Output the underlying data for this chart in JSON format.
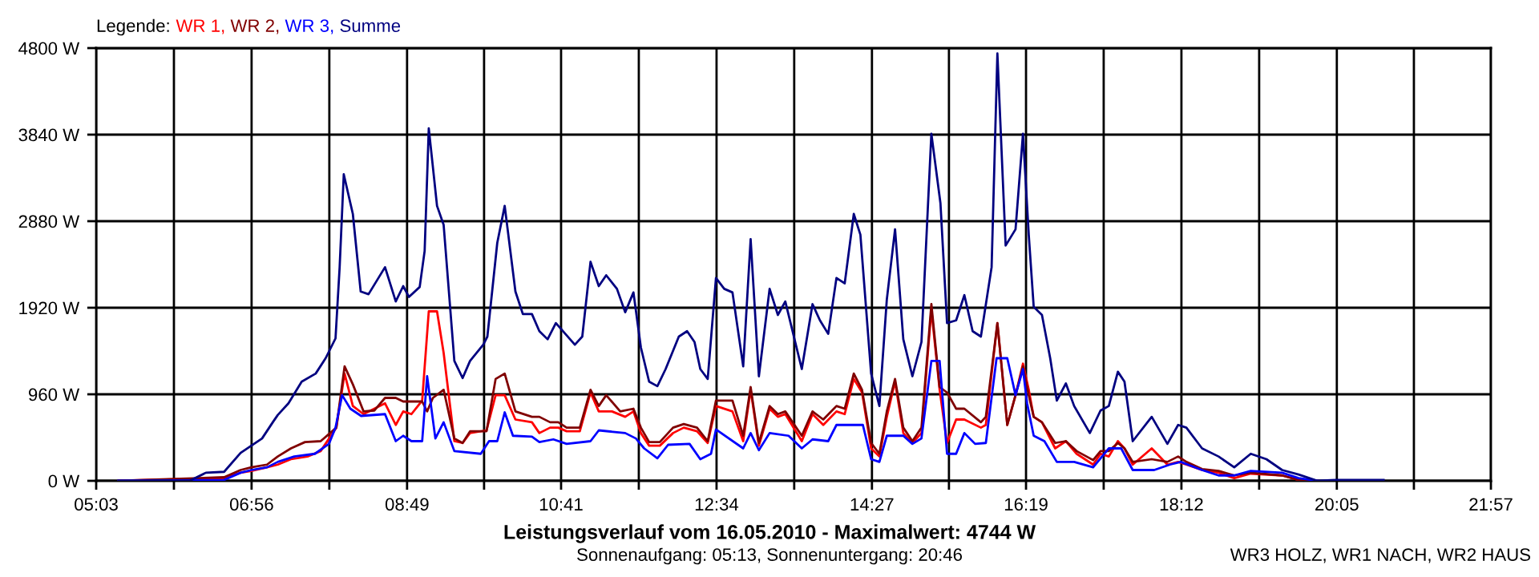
{
  "chart_data": {
    "type": "line",
    "title": "Leistungsverlauf vom 16.05.2010 - Maximalwert: 4744 W",
    "subtitle": "Sonnenaufgang: 05:13, Sonnenuntergang: 20:46",
    "legend_title": "Legende:",
    "legend": "top left",
    "grid": true,
    "marker": "none",
    "line_style": "solid",
    "annotations": [
      "WR3 HOLZ, WR1 NACH, WR2 HAUS"
    ],
    "xlim": [
      5.05,
      21.95
    ],
    "ylim": [
      0,
      4800
    ],
    "xticks": [
      {
        "value": 5.05,
        "label": "05:03"
      },
      {
        "value": 5.992,
        "label": null
      },
      {
        "value": 6.933,
        "label": "06:56"
      },
      {
        "value": 7.875,
        "label": null
      },
      {
        "value": 8.817,
        "label": "08:49"
      },
      {
        "value": 9.75,
        "label": null
      },
      {
        "value": 10.683,
        "label": "10:41"
      },
      {
        "value": 11.625,
        "label": null
      },
      {
        "value": 12.567,
        "label": "12:34"
      },
      {
        "value": 13.508,
        "label": null
      },
      {
        "value": 14.45,
        "label": "14:27"
      },
      {
        "value": 15.383,
        "label": null
      },
      {
        "value": 16.317,
        "label": "16:19"
      },
      {
        "value": 17.258,
        "label": null
      },
      {
        "value": 18.2,
        "label": "18:12"
      },
      {
        "value": 19.142,
        "label": null
      },
      {
        "value": 20.083,
        "label": "20:05"
      },
      {
        "value": 21.017,
        "label": null
      },
      {
        "value": 21.95,
        "label": "21:57"
      }
    ],
    "yticks": [
      {
        "value": 0,
        "label": "0 W"
      },
      {
        "value": 960,
        "label": "960 W"
      },
      {
        "value": 1920,
        "label": "1920 W"
      },
      {
        "value": 2880,
        "label": "2880 W"
      },
      {
        "value": 3840,
        "label": "3840 W"
      },
      {
        "value": 4800,
        "label": "4800 W"
      }
    ],
    "series": [
      {
        "name": "WR 1,",
        "color": "#ff0000",
        "x": [
          5.32,
          6.6,
          6.8,
          6.93,
          7.12,
          7.25,
          7.41,
          7.61,
          7.77,
          7.96,
          8.06,
          8.16,
          8.29,
          8.55,
          8.68,
          8.77,
          8.87,
          9.0,
          9.08,
          9.18,
          9.26,
          9.39,
          9.49,
          9.58,
          9.78,
          9.89,
          10.0,
          10.13,
          10.33,
          10.42,
          10.55,
          10.65,
          10.75,
          10.91,
          11.04,
          11.14,
          11.3,
          11.46,
          11.56,
          11.65,
          11.75,
          11.88,
          12.04,
          12.17,
          12.33,
          12.46,
          12.56,
          12.76,
          12.89,
          12.98,
          13.08,
          13.21,
          13.31,
          13.4,
          13.6,
          13.73,
          13.86,
          14.02,
          14.12,
          14.23,
          14.33,
          14.44,
          14.54,
          14.63,
          14.73,
          14.83,
          14.94,
          15.05,
          15.17,
          15.27,
          15.36,
          15.47,
          15.57,
          15.77,
          15.83,
          15.97,
          16.09,
          16.19,
          16.28,
          16.35,
          16.41,
          16.51,
          16.67,
          16.8,
          16.93,
          17.13,
          17.22,
          17.32,
          17.43,
          17.51,
          17.61,
          17.84,
          18.03,
          18.16,
          18.26,
          18.45,
          18.65,
          18.84,
          19.04,
          19.42,
          19.62,
          19.85
        ],
        "values": [
          0,
          30,
          90,
          110,
          150,
          180,
          240,
          270,
          330,
          590,
          1190,
          830,
          740,
          860,
          620,
          770,
          740,
          890,
          1880,
          1880,
          1420,
          440,
          420,
          530,
          560,
          950,
          950,
          680,
          650,
          530,
          590,
          590,
          550,
          550,
          980,
          770,
          770,
          710,
          770,
          530,
          390,
          390,
          530,
          590,
          550,
          420,
          830,
          770,
          440,
          1010,
          390,
          800,
          710,
          740,
          440,
          740,
          620,
          770,
          740,
          1130,
          980,
          360,
          270,
          710,
          1100,
          530,
          420,
          530,
          1900,
          1010,
          420,
          680,
          680,
          590,
          620,
          1750,
          620,
          950,
          1300,
          1010,
          710,
          650,
          360,
          440,
          300,
          180,
          300,
          270,
          440,
          360,
          180,
          360,
          180,
          210,
          180,
          120,
          90,
          30,
          80,
          60,
          10,
          0
        ]
      },
      {
        "name": "WR 2,",
        "color": "#800000",
        "x": [
          5.32,
          6.6,
          6.8,
          6.93,
          7.12,
          7.25,
          7.41,
          7.58,
          7.77,
          7.96,
          8.06,
          8.16,
          8.29,
          8.42,
          8.55,
          8.68,
          8.77,
          9.0,
          9.06,
          9.13,
          9.26,
          9.39,
          9.49,
          9.58,
          9.78,
          9.89,
          10.0,
          10.13,
          10.33,
          10.42,
          10.55,
          10.65,
          10.75,
          10.91,
          11.04,
          11.14,
          11.23,
          11.4,
          11.56,
          11.65,
          11.75,
          11.88,
          12.04,
          12.17,
          12.33,
          12.46,
          12.56,
          12.76,
          12.89,
          12.98,
          13.08,
          13.21,
          13.31,
          13.4,
          13.6,
          13.73,
          13.86,
          14.02,
          14.12,
          14.23,
          14.33,
          14.44,
          14.54,
          14.63,
          14.73,
          14.83,
          14.94,
          15.05,
          15.17,
          15.27,
          15.36,
          15.47,
          15.57,
          15.77,
          15.83,
          15.97,
          16.09,
          16.19,
          16.28,
          16.35,
          16.41,
          16.51,
          16.67,
          16.8,
          16.93,
          17.13,
          17.22,
          17.32,
          17.43,
          17.51,
          17.61,
          17.84,
          18.03,
          18.16,
          18.26,
          18.45,
          18.65,
          18.84,
          19.04,
          19.42,
          19.62,
          19.85
        ],
        "values": [
          0,
          40,
          120,
          150,
          180,
          270,
          360,
          430,
          440,
          590,
          1270,
          1070,
          770,
          780,
          920,
          920,
          880,
          880,
          770,
          920,
          1010,
          470,
          420,
          550,
          550,
          1130,
          1190,
          770,
          710,
          710,
          650,
          650,
          590,
          590,
          1010,
          830,
          950,
          770,
          800,
          590,
          430,
          430,
          590,
          630,
          590,
          440,
          890,
          890,
          500,
          1040,
          420,
          830,
          740,
          770,
          500,
          770,
          680,
          830,
          800,
          1190,
          1010,
          420,
          300,
          770,
          1130,
          590,
          440,
          590,
          1960,
          1040,
          980,
          800,
          800,
          650,
          710,
          1750,
          620,
          950,
          1270,
          950,
          710,
          650,
          420,
          440,
          330,
          230,
          330,
          330,
          420,
          360,
          210,
          240,
          210,
          270,
          210,
          130,
          110,
          60,
          90,
          60,
          10,
          0
        ]
      },
      {
        "name": "WR 3,",
        "color": "#0000ff",
        "x": [
          5.32,
          6.6,
          6.8,
          6.93,
          7.12,
          7.25,
          7.45,
          7.7,
          7.87,
          7.95,
          8.03,
          8.13,
          8.26,
          8.55,
          8.68,
          8.77,
          8.87,
          9.0,
          9.06,
          9.16,
          9.26,
          9.39,
          9.71,
          9.81,
          9.91,
          10.0,
          10.1,
          10.33,
          10.42,
          10.59,
          10.75,
          11.04,
          11.14,
          11.46,
          11.59,
          11.69,
          11.85,
          11.98,
          12.24,
          12.37,
          12.5,
          12.56,
          12.89,
          12.98,
          13.08,
          13.21,
          13.44,
          13.6,
          13.73,
          13.92,
          14.02,
          14.34,
          14.44,
          14.54,
          14.63,
          14.83,
          14.94,
          15.05,
          15.17,
          15.27,
          15.36,
          15.47,
          15.57,
          15.7,
          15.83,
          15.96,
          16.09,
          16.19,
          16.28,
          16.33,
          16.41,
          16.54,
          16.69,
          16.9,
          17.13,
          17.32,
          17.47,
          17.61,
          17.87,
          18.06,
          18.19,
          18.45,
          18.65,
          18.84,
          19.04,
          19.42,
          19.62,
          19.85
        ],
        "values": [
          0,
          10,
          90,
          120,
          150,
          210,
          270,
          300,
          410,
          590,
          950,
          800,
          720,
          740,
          440,
          500,
          440,
          440,
          1160,
          470,
          650,
          330,
          300,
          440,
          440,
          760,
          500,
          490,
          430,
          460,
          410,
          440,
          560,
          530,
          470,
          360,
          250,
          400,
          410,
          240,
          300,
          570,
          360,
          530,
          340,
          530,
          500,
          360,
          460,
          440,
          620,
          620,
          240,
          210,
          500,
          500,
          410,
          470,
          1330,
          1330,
          300,
          300,
          530,
          410,
          420,
          1360,
          1360,
          950,
          1240,
          860,
          500,
          440,
          210,
          210,
          150,
          360,
          360,
          120,
          120,
          180,
          210,
          120,
          60,
          60,
          110,
          90,
          30,
          0
        ]
      },
      {
        "name": "Summe",
        "color": "#000080",
        "x": [
          5.32,
          6.18,
          6.38,
          6.6,
          6.8,
          6.93,
          7.06,
          7.19,
          7.25,
          7.38,
          7.54,
          7.71,
          7.83,
          7.95,
          8.0,
          8.05,
          8.16,
          8.255,
          8.35,
          8.55,
          8.68,
          8.77,
          8.84,
          8.97,
          9.03,
          9.08,
          9.18,
          9.26,
          9.39,
          9.49,
          9.58,
          9.74,
          9.79,
          9.91,
          10.0,
          10.13,
          10.22,
          10.33,
          10.42,
          10.52,
          10.62,
          10.85,
          10.94,
          11.04,
          11.14,
          11.23,
          11.36,
          11.46,
          11.56,
          11.65,
          11.75,
          11.85,
          11.95,
          12.11,
          12.21,
          12.3,
          12.37,
          12.46,
          12.56,
          12.66,
          12.76,
          12.89,
          12.98,
          13.08,
          13.21,
          13.31,
          13.4,
          13.6,
          13.73,
          13.82,
          13.92,
          14.02,
          14.12,
          14.23,
          14.31,
          14.44,
          14.54,
          14.63,
          14.73,
          14.83,
          14.94,
          15.05,
          15.17,
          15.28,
          15.36,
          15.47,
          15.57,
          15.67,
          15.77,
          15.9,
          15.97,
          16.07,
          16.19,
          16.28,
          16.35,
          16.41,
          16.51,
          16.61,
          16.69,
          16.8,
          16.9,
          17.09,
          17.22,
          17.32,
          17.43,
          17.51,
          17.61,
          17.84,
          18.03,
          18.16,
          18.26,
          18.45,
          18.65,
          18.84,
          19.04,
          19.23,
          19.42,
          19.62,
          19.85,
          20.07,
          20.65
        ],
        "values": [
          0,
          0,
          90,
          100,
          310,
          390,
          470,
          650,
          730,
          860,
          1100,
          1190,
          1360,
          1580,
          2370,
          3400,
          2960,
          2100,
          2070,
          2370,
          1990,
          2160,
          2040,
          2150,
          2550,
          3910,
          3050,
          2840,
          1330,
          1140,
          1330,
          1510,
          1600,
          2640,
          3050,
          2100,
          1850,
          1850,
          1660,
          1570,
          1750,
          1510,
          1600,
          2430,
          2160,
          2280,
          2130,
          1870,
          2090,
          1480,
          1100,
          1050,
          1240,
          1600,
          1660,
          1540,
          1240,
          1130,
          2250,
          2130,
          2090,
          1270,
          2680,
          1160,
          2130,
          1840,
          1990,
          1240,
          1960,
          1780,
          1630,
          2250,
          2190,
          2960,
          2730,
          1190,
          830,
          2010,
          2790,
          1570,
          1160,
          1540,
          3850,
          3080,
          1750,
          1780,
          2060,
          1660,
          1600,
          2370,
          4740,
          2610,
          2790,
          3850,
          2730,
          1930,
          1840,
          1360,
          890,
          1080,
          830,
          530,
          780,
          830,
          1210,
          1100,
          440,
          710,
          410,
          620,
          590,
          360,
          270,
          150,
          300,
          240,
          120,
          70,
          0,
          10,
          10
        ]
      }
    ]
  }
}
